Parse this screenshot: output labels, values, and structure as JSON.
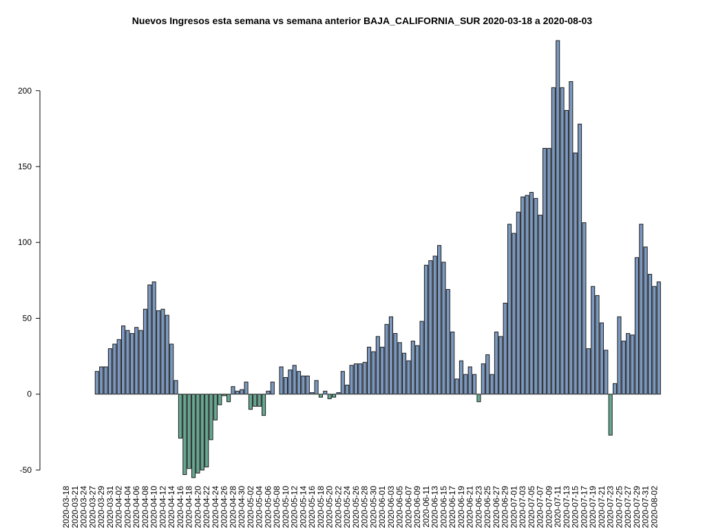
{
  "chart_data": {
    "type": "bar",
    "title": "Nuevos Ingresos esta semana vs semana anterior BAJA_CALIFORNIA_SUR 2020-03-18 a 2020-08-03",
    "categories": [
      "2020-03-18",
      null,
      "2020-03-21",
      null,
      "2020-03-24",
      null,
      "2020-03-27",
      null,
      "2020-03-29",
      null,
      "2020-03-31",
      null,
      "2020-04-02",
      null,
      "2020-04-04",
      null,
      "2020-04-06",
      null,
      "2020-04-08",
      null,
      "2020-04-10",
      null,
      "2020-04-12",
      null,
      "2020-04-14",
      null,
      "2020-04-16",
      null,
      "2020-04-18",
      null,
      "2020-04-20",
      null,
      "2020-04-22",
      null,
      "2020-04-24",
      null,
      "2020-04-26",
      null,
      "2020-04-28",
      null,
      "2020-04-30",
      null,
      "2020-05-02",
      null,
      "2020-05-04",
      null,
      "2020-05-06",
      null,
      "2020-05-08",
      null,
      "2020-05-10",
      null,
      "2020-05-12",
      null,
      "2020-05-14",
      null,
      "2020-05-16",
      null,
      "2020-05-18",
      null,
      "2020-05-20",
      null,
      "2020-05-22",
      null,
      "2020-05-24",
      null,
      "2020-05-26",
      null,
      "2020-05-28",
      null,
      "2020-05-30",
      null,
      "2020-06-01",
      null,
      "2020-06-03",
      null,
      "2020-06-05",
      null,
      "2020-06-07",
      null,
      "2020-06-09",
      null,
      "2020-06-11",
      null,
      "2020-06-13",
      null,
      "2020-06-15",
      null,
      "2020-06-17",
      null,
      "2020-06-19",
      null,
      "2020-06-21",
      null,
      "2020-06-23",
      null,
      "2020-06-25",
      null,
      "2020-06-27",
      null,
      "2020-06-29",
      null,
      "2020-07-01",
      null,
      "2020-07-03",
      null,
      "2020-07-05",
      null,
      "2020-07-07",
      null,
      "2020-07-09",
      null,
      "2020-07-11",
      null,
      "2020-07-13",
      null,
      "2020-07-15",
      null,
      "2020-07-17",
      null,
      "2020-07-19",
      null,
      "2020-07-21",
      null,
      "2020-07-23",
      null,
      "2020-07-25",
      null,
      "2020-07-27",
      null,
      "2020-07-29",
      null,
      "2020-07-31",
      null,
      "2020-08-02",
      null
    ],
    "values": [
      0,
      0,
      0,
      0,
      0,
      0,
      0,
      15,
      18,
      18,
      30,
      33,
      36,
      45,
      42,
      40,
      44,
      42,
      56,
      72,
      74,
      55,
      56,
      52,
      33,
      9,
      -29,
      -53,
      -49,
      -55,
      -52,
      -50,
      -48,
      -30,
      -17,
      -7,
      -1,
      -5,
      5,
      2,
      3,
      8,
      -10,
      -8,
      -8,
      -14,
      2,
      8,
      0,
      18,
      11,
      16,
      19,
      15,
      12,
      12,
      1,
      9,
      -2,
      2,
      -3,
      -2,
      1,
      15,
      6,
      19,
      20,
      20,
      21,
      31,
      28,
      38,
      31,
      46,
      51,
      40,
      34,
      27,
      22,
      35,
      32,
      48,
      85,
      88,
      91,
      98,
      87,
      69,
      41,
      10,
      22,
      13,
      18,
      13,
      -5,
      20,
      26,
      13,
      41,
      38,
      60,
      112,
      106,
      120,
      130,
      131,
      133,
      129,
      118,
      162,
      162,
      202,
      233,
      202,
      187,
      206,
      159,
      178,
      113,
      30,
      71,
      65,
      47,
      29,
      -27,
      7,
      51,
      35,
      40,
      39,
      90,
      112,
      97,
      79,
      71,
      74
    ],
    "color": "#7b98bf",
    "negative_color": "#66a891",
    "ylim": [
      -55,
      233
    ],
    "yticks": [
      -50,
      0,
      50,
      100,
      150,
      200
    ]
  }
}
